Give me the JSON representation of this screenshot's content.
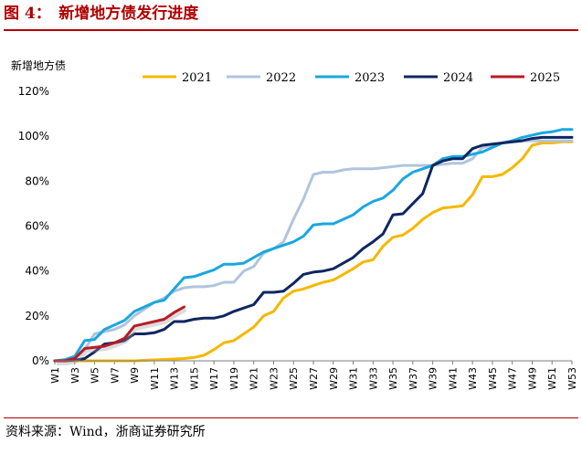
{
  "figure": {
    "title": "图 4：　新增地方债发行进度",
    "source": "资料来源：Wind，浙商证券研究所"
  },
  "chart_data": {
    "type": "line",
    "ylabel": "新增地方债",
    "xlabel": "",
    "ylim": [
      0,
      120
    ],
    "y_ticks": [
      "0%",
      "20%",
      "40%",
      "60%",
      "80%",
      "100%",
      "120%"
    ],
    "x_tick_labels": [
      "W1",
      "W3",
      "W5",
      "W7",
      "W9",
      "W11",
      "W13",
      "W15",
      "W17",
      "W19",
      "W21",
      "W23",
      "W25",
      "W27",
      "W29",
      "W31",
      "W33",
      "W35",
      "W37",
      "W39",
      "W41",
      "W43",
      "W45",
      "W47",
      "W49",
      "W51",
      "W53"
    ],
    "legend_position": "top",
    "grid": false,
    "series": [
      {
        "name": "2021",
        "color": "#f5b800",
        "x": [
          1,
          2,
          3,
          4,
          5,
          6,
          7,
          8,
          9,
          10,
          11,
          12,
          13,
          14,
          15,
          16,
          17,
          18,
          19,
          20,
          21,
          22,
          23,
          24,
          25,
          26,
          27,
          28,
          29,
          30,
          31,
          32,
          33,
          34,
          35,
          36,
          37,
          38,
          39,
          40,
          41,
          42,
          43,
          44,
          45,
          46,
          47,
          48,
          49,
          50,
          51,
          52,
          53
        ],
        "values": [
          0,
          0,
          0,
          0,
          0,
          0,
          0,
          0,
          0,
          0.2,
          0.4,
          0.6,
          0.8,
          1,
          1.5,
          2.5,
          5,
          8,
          9,
          12,
          15,
          20,
          22,
          28,
          31,
          32,
          33.5,
          35,
          36,
          38.5,
          41,
          44,
          45,
          51,
          55,
          56,
          59,
          63,
          66,
          68,
          68.5,
          69,
          74,
          82,
          82,
          83,
          86,
          90,
          96,
          97,
          97,
          97.5,
          97.5
        ]
      },
      {
        "name": "2022",
        "color": "#b0c4de",
        "x": [
          1,
          2,
          3,
          4,
          5,
          6,
          7,
          8,
          9,
          10,
          11,
          12,
          13,
          14,
          15,
          16,
          17,
          18,
          19,
          20,
          21,
          22,
          23,
          24,
          25,
          26,
          27,
          28,
          29,
          30,
          31,
          32,
          33,
          34,
          35,
          36,
          37,
          38,
          39,
          40,
          41,
          42,
          43,
          44,
          45,
          46,
          47,
          48,
          49,
          50,
          51,
          52,
          53
        ],
        "values": [
          0,
          0,
          1,
          5,
          12,
          13,
          14,
          16,
          20,
          23,
          26,
          28,
          31,
          32.5,
          33,
          33,
          33.5,
          35,
          35,
          40,
          42,
          48,
          50,
          53,
          63,
          72,
          83,
          84,
          84,
          85,
          85.5,
          85.5,
          85.5,
          86,
          86.5,
          87,
          87,
          87,
          87,
          87.5,
          88,
          88,
          90,
          95,
          96,
          97,
          97.5,
          98,
          98,
          98,
          98,
          98,
          98
        ]
      },
      {
        "name": "2023",
        "color": "#1aa7e0",
        "x": [
          1,
          2,
          3,
          4,
          5,
          6,
          7,
          8,
          9,
          10,
          11,
          12,
          13,
          14,
          15,
          16,
          17,
          18,
          19,
          20,
          21,
          22,
          23,
          24,
          25,
          26,
          27,
          28,
          29,
          30,
          31,
          32,
          33,
          34,
          35,
          36,
          37,
          38,
          39,
          40,
          41,
          42,
          43,
          44,
          45,
          46,
          47,
          48,
          49,
          50,
          51,
          52,
          53
        ],
        "values": [
          0,
          0.5,
          2,
          9,
          9.5,
          14,
          16,
          18,
          22,
          24,
          26,
          27,
          32,
          37,
          37.5,
          39,
          40.5,
          43,
          43,
          43.5,
          46,
          48.5,
          50,
          51.5,
          53,
          55.5,
          60.5,
          61,
          61,
          63,
          65,
          68.5,
          71,
          72.5,
          76,
          81,
          84,
          85.5,
          87,
          90,
          91,
          91,
          92,
          93,
          95,
          97,
          98,
          99.5,
          100.5,
          101.5,
          102,
          103,
          103
        ]
      },
      {
        "name": "2024",
        "color": "#0f2760",
        "x": [
          1,
          2,
          3,
          4,
          5,
          6,
          7,
          8,
          9,
          10,
          11,
          12,
          13,
          14,
          15,
          16,
          17,
          18,
          19,
          20,
          21,
          22,
          23,
          24,
          25,
          26,
          27,
          28,
          29,
          30,
          31,
          32,
          33,
          34,
          35,
          36,
          37,
          38,
          39,
          40,
          41,
          42,
          43,
          44,
          45,
          46,
          47,
          48,
          49,
          50,
          51,
          52,
          53
        ],
        "values": [
          0,
          0,
          0.3,
          1,
          4,
          7.5,
          8,
          9,
          12,
          12,
          12.5,
          14,
          17.5,
          17.5,
          18.5,
          19,
          19,
          20,
          22,
          23.5,
          25,
          30.5,
          30.5,
          31,
          34.5,
          38.5,
          39.5,
          40,
          41,
          43.5,
          46,
          50,
          53,
          56.5,
          65,
          65.5,
          70,
          74.5,
          87,
          89,
          90,
          90,
          94.5,
          96,
          96.5,
          97,
          97.5,
          98,
          99,
          99.5,
          99.5,
          99.5,
          99.5
        ]
      },
      {
        "name": "2025",
        "color": "#b81b25",
        "x": [
          1,
          2,
          3,
          4,
          5,
          6,
          7,
          8,
          9,
          10,
          11,
          12,
          13,
          14
        ],
        "values": [
          0,
          0,
          1,
          5.5,
          6,
          6.5,
          8,
          10,
          15.5,
          16.5,
          17.5,
          18.5,
          21.5,
          24
        ]
      }
    ]
  }
}
